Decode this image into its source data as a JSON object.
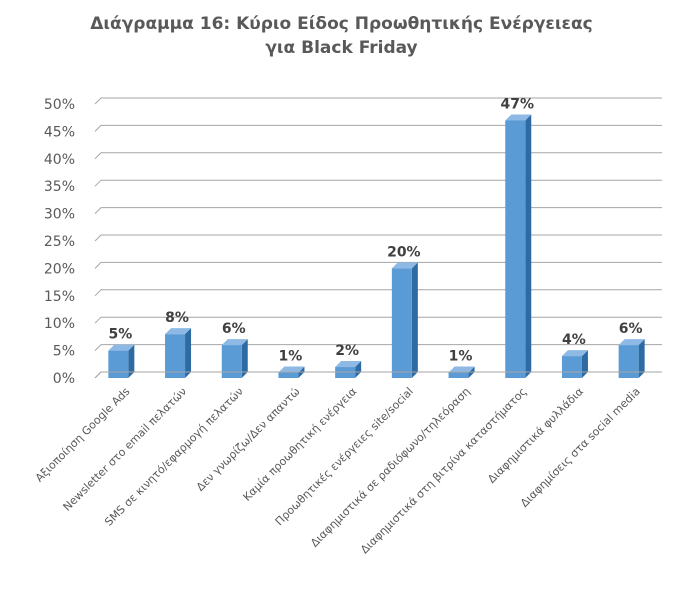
{
  "chart_data": {
    "type": "bar",
    "title_lines": [
      "Διάγραμμα 16: Κύριο Είδος Προωθητικής Ενέργειεας",
      "για Black Friday"
    ],
    "categories": [
      "Αξιοποίηση Google Ads",
      "Newsletter στο email πελατών",
      "SMS σε κινητό/εφαρμογή πελατών",
      "Δεν γνωρίζω/Δεν απαντώ",
      "Καμία προωθητική ενέργεια",
      "Προωθητικές ενέργειες site/social",
      "Διαφημιστικά σε ραδιόφωνο/τηλεόραση",
      "Διαφημιστικά στη βιτρίνα καταστήματος",
      "Διαφημιστικά φυλλάδια",
      "Διαφημίσεις στα social media"
    ],
    "values": [
      5,
      8,
      6,
      1,
      2,
      20,
      1,
      47,
      4,
      6
    ],
    "data_labels": [
      "5%",
      "8%",
      "6%",
      "1%",
      "2%",
      "20%",
      "1%",
      "47%",
      "4%",
      "6%"
    ],
    "y_ticks": [
      "0%",
      "5%",
      "10%",
      "15%",
      "20%",
      "25%",
      "30%",
      "35%",
      "40%",
      "45%",
      "50%"
    ],
    "ylim": [
      0,
      50
    ],
    "grid": true,
    "legend": "none",
    "colors": {
      "bar_front": "#5B9BD5",
      "bar_side": "#2E6BA3",
      "bar_top": "#8DB9E4",
      "grid": "#A6A6A6"
    }
  }
}
